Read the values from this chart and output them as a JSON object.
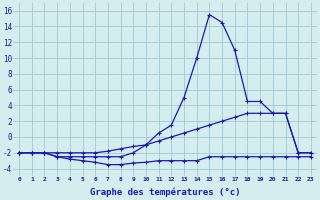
{
  "hours": [
    0,
    1,
    2,
    3,
    4,
    5,
    6,
    7,
    8,
    9,
    10,
    11,
    12,
    13,
    14,
    15,
    16,
    17,
    18,
    19,
    20,
    21,
    22,
    23
  ],
  "temp": [
    -2,
    -2,
    -2,
    -2.5,
    -2.5,
    -2.5,
    -2.5,
    -2.5,
    -2.5,
    -2,
    -1,
    0.5,
    1.5,
    5,
    10,
    15.5,
    14.5,
    11,
    4.5,
    4.5,
    3,
    3,
    -2,
    -2
  ],
  "mid": [
    -2,
    -2,
    -2,
    -2,
    -2,
    -2,
    -2,
    -1.8,
    -1.5,
    -1.2,
    -1,
    -0.5,
    0,
    0.5,
    1,
    1.5,
    2,
    2.5,
    3,
    3,
    3,
    3,
    -2,
    -2
  ],
  "dew": [
    -2,
    -2,
    -2,
    -2.5,
    -2.8,
    -3,
    -3.2,
    -3.5,
    -3.5,
    -3.3,
    -3.2,
    -3,
    -3,
    -3,
    -3,
    -2.5,
    -2.5,
    -2.5,
    -2.5,
    -2.5,
    -2.5,
    -2.5,
    -2.5,
    -2.5
  ],
  "bg_color": "#d4eef0",
  "grid_color": "#a8ccd4",
  "line_color": "#1a1aaa",
  "xlabel": "Graphe des températures (°c)",
  "ylim": [
    -5,
    17
  ],
  "xlim": [
    -0.5,
    23.5
  ],
  "yticks": [
    -4,
    -2,
    0,
    2,
    4,
    6,
    8,
    10,
    12,
    14,
    16
  ],
  "xticks": [
    0,
    1,
    2,
    3,
    4,
    5,
    6,
    7,
    8,
    9,
    10,
    11,
    12,
    13,
    14,
    15,
    16,
    17,
    18,
    19,
    20,
    21,
    22,
    23
  ]
}
